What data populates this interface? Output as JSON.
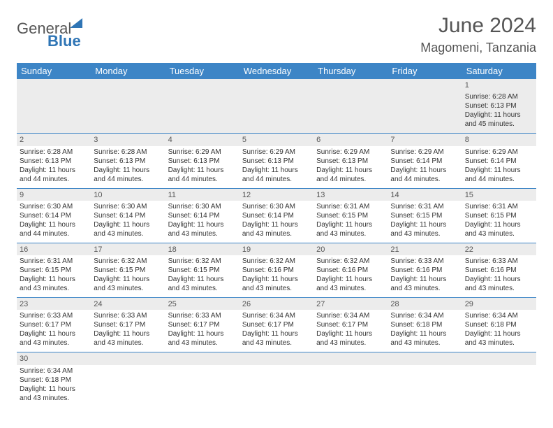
{
  "logo": {
    "part1": "General",
    "part2": "Blue"
  },
  "header": {
    "month_year": "June 2024",
    "location": "Magomeni, Tanzania"
  },
  "days": [
    "Sunday",
    "Monday",
    "Tuesday",
    "Wednesday",
    "Thursday",
    "Friday",
    "Saturday"
  ],
  "colors": {
    "header_bg": "#3d85c6",
    "header_text": "#ffffff",
    "daynum_bg": "#ececec",
    "border": "#3d85c6",
    "logo_blue": "#2f75b5"
  },
  "weeks": [
    [
      null,
      null,
      null,
      null,
      null,
      null,
      {
        "n": "1",
        "sr": "Sunrise: 6:28 AM",
        "ss": "Sunset: 6:13 PM",
        "dl1": "Daylight: 11 hours",
        "dl2": "and 45 minutes."
      }
    ],
    [
      {
        "n": "2",
        "sr": "Sunrise: 6:28 AM",
        "ss": "Sunset: 6:13 PM",
        "dl1": "Daylight: 11 hours",
        "dl2": "and 44 minutes."
      },
      {
        "n": "3",
        "sr": "Sunrise: 6:28 AM",
        "ss": "Sunset: 6:13 PM",
        "dl1": "Daylight: 11 hours",
        "dl2": "and 44 minutes."
      },
      {
        "n": "4",
        "sr": "Sunrise: 6:29 AM",
        "ss": "Sunset: 6:13 PM",
        "dl1": "Daylight: 11 hours",
        "dl2": "and 44 minutes."
      },
      {
        "n": "5",
        "sr": "Sunrise: 6:29 AM",
        "ss": "Sunset: 6:13 PM",
        "dl1": "Daylight: 11 hours",
        "dl2": "and 44 minutes."
      },
      {
        "n": "6",
        "sr": "Sunrise: 6:29 AM",
        "ss": "Sunset: 6:13 PM",
        "dl1": "Daylight: 11 hours",
        "dl2": "and 44 minutes."
      },
      {
        "n": "7",
        "sr": "Sunrise: 6:29 AM",
        "ss": "Sunset: 6:14 PM",
        "dl1": "Daylight: 11 hours",
        "dl2": "and 44 minutes."
      },
      {
        "n": "8",
        "sr": "Sunrise: 6:29 AM",
        "ss": "Sunset: 6:14 PM",
        "dl1": "Daylight: 11 hours",
        "dl2": "and 44 minutes."
      }
    ],
    [
      {
        "n": "9",
        "sr": "Sunrise: 6:30 AM",
        "ss": "Sunset: 6:14 PM",
        "dl1": "Daylight: 11 hours",
        "dl2": "and 44 minutes."
      },
      {
        "n": "10",
        "sr": "Sunrise: 6:30 AM",
        "ss": "Sunset: 6:14 PM",
        "dl1": "Daylight: 11 hours",
        "dl2": "and 43 minutes."
      },
      {
        "n": "11",
        "sr": "Sunrise: 6:30 AM",
        "ss": "Sunset: 6:14 PM",
        "dl1": "Daylight: 11 hours",
        "dl2": "and 43 minutes."
      },
      {
        "n": "12",
        "sr": "Sunrise: 6:30 AM",
        "ss": "Sunset: 6:14 PM",
        "dl1": "Daylight: 11 hours",
        "dl2": "and 43 minutes."
      },
      {
        "n": "13",
        "sr": "Sunrise: 6:31 AM",
        "ss": "Sunset: 6:15 PM",
        "dl1": "Daylight: 11 hours",
        "dl2": "and 43 minutes."
      },
      {
        "n": "14",
        "sr": "Sunrise: 6:31 AM",
        "ss": "Sunset: 6:15 PM",
        "dl1": "Daylight: 11 hours",
        "dl2": "and 43 minutes."
      },
      {
        "n": "15",
        "sr": "Sunrise: 6:31 AM",
        "ss": "Sunset: 6:15 PM",
        "dl1": "Daylight: 11 hours",
        "dl2": "and 43 minutes."
      }
    ],
    [
      {
        "n": "16",
        "sr": "Sunrise: 6:31 AM",
        "ss": "Sunset: 6:15 PM",
        "dl1": "Daylight: 11 hours",
        "dl2": "and 43 minutes."
      },
      {
        "n": "17",
        "sr": "Sunrise: 6:32 AM",
        "ss": "Sunset: 6:15 PM",
        "dl1": "Daylight: 11 hours",
        "dl2": "and 43 minutes."
      },
      {
        "n": "18",
        "sr": "Sunrise: 6:32 AM",
        "ss": "Sunset: 6:15 PM",
        "dl1": "Daylight: 11 hours",
        "dl2": "and 43 minutes."
      },
      {
        "n": "19",
        "sr": "Sunrise: 6:32 AM",
        "ss": "Sunset: 6:16 PM",
        "dl1": "Daylight: 11 hours",
        "dl2": "and 43 minutes."
      },
      {
        "n": "20",
        "sr": "Sunrise: 6:32 AM",
        "ss": "Sunset: 6:16 PM",
        "dl1": "Daylight: 11 hours",
        "dl2": "and 43 minutes."
      },
      {
        "n": "21",
        "sr": "Sunrise: 6:33 AM",
        "ss": "Sunset: 6:16 PM",
        "dl1": "Daylight: 11 hours",
        "dl2": "and 43 minutes."
      },
      {
        "n": "22",
        "sr": "Sunrise: 6:33 AM",
        "ss": "Sunset: 6:16 PM",
        "dl1": "Daylight: 11 hours",
        "dl2": "and 43 minutes."
      }
    ],
    [
      {
        "n": "23",
        "sr": "Sunrise: 6:33 AM",
        "ss": "Sunset: 6:17 PM",
        "dl1": "Daylight: 11 hours",
        "dl2": "and 43 minutes."
      },
      {
        "n": "24",
        "sr": "Sunrise: 6:33 AM",
        "ss": "Sunset: 6:17 PM",
        "dl1": "Daylight: 11 hours",
        "dl2": "and 43 minutes."
      },
      {
        "n": "25",
        "sr": "Sunrise: 6:33 AM",
        "ss": "Sunset: 6:17 PM",
        "dl1": "Daylight: 11 hours",
        "dl2": "and 43 minutes."
      },
      {
        "n": "26",
        "sr": "Sunrise: 6:34 AM",
        "ss": "Sunset: 6:17 PM",
        "dl1": "Daylight: 11 hours",
        "dl2": "and 43 minutes."
      },
      {
        "n": "27",
        "sr": "Sunrise: 6:34 AM",
        "ss": "Sunset: 6:17 PM",
        "dl1": "Daylight: 11 hours",
        "dl2": "and 43 minutes."
      },
      {
        "n": "28",
        "sr": "Sunrise: 6:34 AM",
        "ss": "Sunset: 6:18 PM",
        "dl1": "Daylight: 11 hours",
        "dl2": "and 43 minutes."
      },
      {
        "n": "29",
        "sr": "Sunrise: 6:34 AM",
        "ss": "Sunset: 6:18 PM",
        "dl1": "Daylight: 11 hours",
        "dl2": "and 43 minutes."
      }
    ],
    [
      {
        "n": "30",
        "sr": "Sunrise: 6:34 AM",
        "ss": "Sunset: 6:18 PM",
        "dl1": "Daylight: 11 hours",
        "dl2": "and 43 minutes."
      },
      null,
      null,
      null,
      null,
      null,
      null
    ]
  ]
}
